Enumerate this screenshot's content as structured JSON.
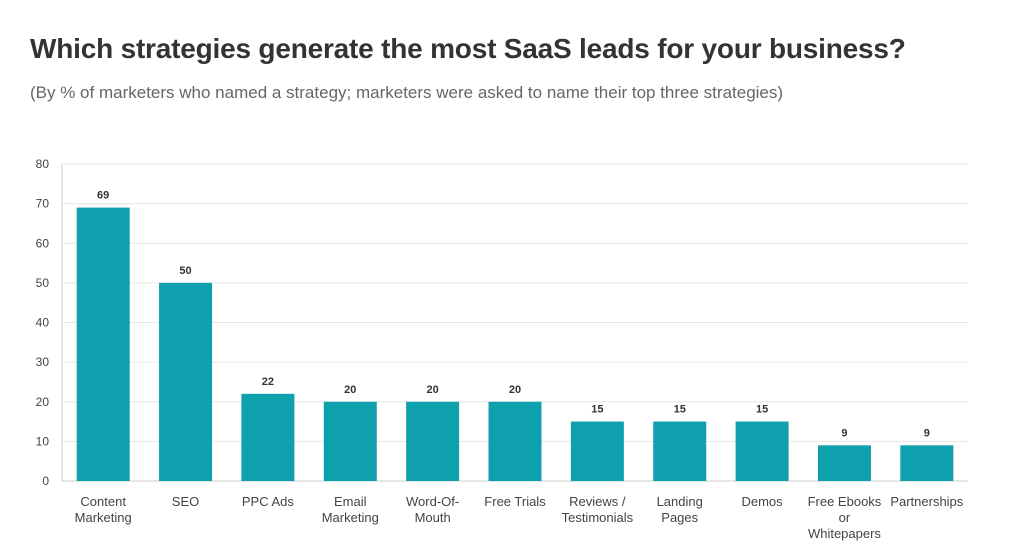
{
  "chart_data": {
    "type": "bar",
    "title": "Which strategies generate the most SaaS leads for your business?",
    "subtitle": "(By % of marketers who named a strategy; marketers were asked to name their top three strategies)",
    "categories": [
      [
        "Content",
        "Marketing"
      ],
      [
        "SEO"
      ],
      [
        "PPC Ads"
      ],
      [
        "Email",
        "Marketing"
      ],
      [
        "Word-Of-",
        "Mouth"
      ],
      [
        "Free Trials"
      ],
      [
        "Reviews /",
        "Testimonials"
      ],
      [
        "Landing",
        "Pages"
      ],
      [
        "Demos"
      ],
      [
        "Free Ebooks",
        "or",
        "Whitepapers"
      ],
      [
        "Partnerships"
      ]
    ],
    "values": [
      69,
      50,
      22,
      20,
      20,
      20,
      15,
      15,
      15,
      9,
      9
    ],
    "ylim": [
      0,
      80
    ],
    "yticks": [
      0,
      10,
      20,
      30,
      40,
      50,
      60,
      70,
      80
    ],
    "xlabel": "",
    "ylabel": "",
    "grid": true,
    "bar_color": "#0fa0ad",
    "grid_color": "#e6e6e6",
    "axis_color": "#cccccc"
  }
}
